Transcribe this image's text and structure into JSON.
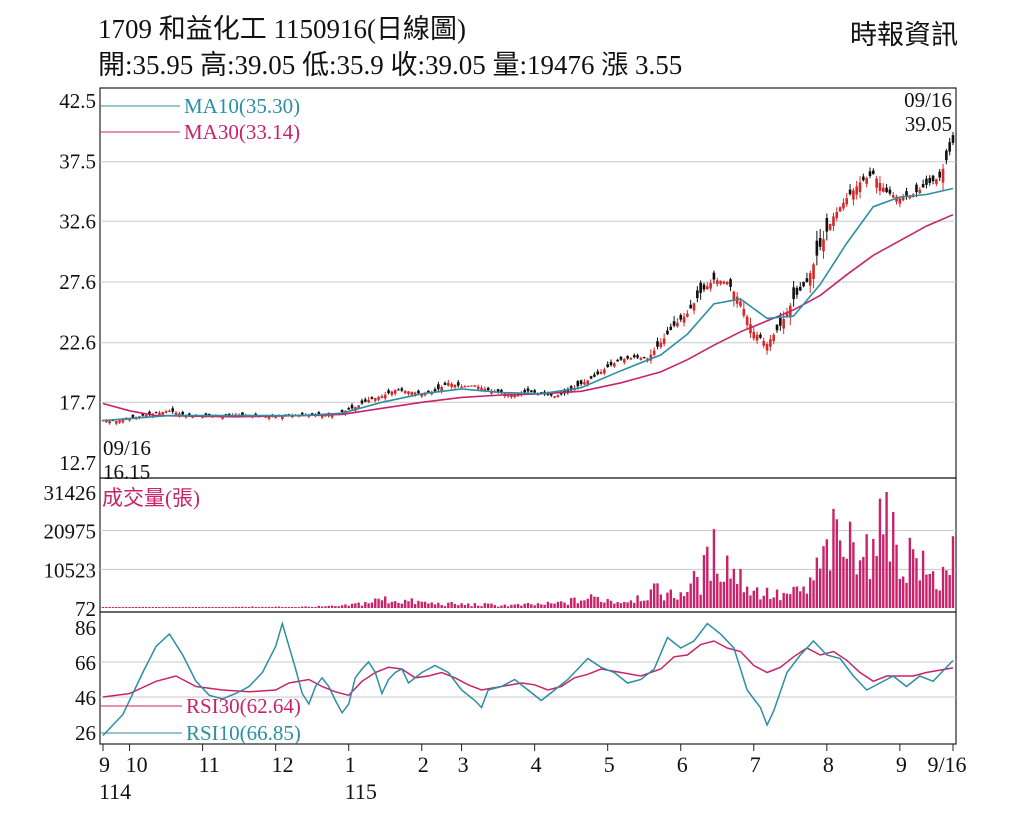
{
  "header": {
    "title": "1709  和益化工 1150916(日線圖)",
    "stats": "開:35.95 高:39.05 低:35.9 收:39.05 量:19476 漲 3.55",
    "source": "時報資訊"
  },
  "colors": {
    "ma10": "#2a8fa2",
    "ma30": "#c8236a",
    "candle_up": "#d42a2a",
    "candle_down": "#111111",
    "volume": "#c8236a",
    "rsi30": "#c8236a",
    "rsi10": "#2a8fa2"
  },
  "chart_data": [
    {
      "type": "candlestick",
      "panel": "price",
      "y_ticks": [
        "42.5",
        "37.5",
        "32.6",
        "27.6",
        "22.6",
        "17.7",
        "12.7"
      ],
      "ylim": [
        12.7,
        42.5
      ],
      "grid": true,
      "legend": [
        {
          "key": "ma10",
          "text": "MA10(35.30)"
        },
        {
          "key": "ma30",
          "text": "MA30(33.14)"
        }
      ],
      "annotations": {
        "high": {
          "date": "09/16",
          "value": "39.05"
        },
        "low": {
          "date": "09/16",
          "value": "16.15"
        }
      },
      "close_path": [
        [
          0,
          16.2
        ],
        [
          4,
          16.15
        ],
        [
          8,
          16.4
        ],
        [
          12,
          16.6
        ],
        [
          16,
          16.8
        ],
        [
          20,
          17.0
        ],
        [
          24,
          16.7
        ],
        [
          28,
          16.5
        ],
        [
          32,
          16.6
        ],
        [
          36,
          16.5
        ],
        [
          40,
          16.7
        ],
        [
          44,
          16.6
        ],
        [
          48,
          16.6
        ],
        [
          52,
          16.5
        ],
        [
          56,
          16.6
        ],
        [
          60,
          16.7
        ],
        [
          64,
          16.7
        ],
        [
          68,
          16.6
        ],
        [
          72,
          16.9
        ],
        [
          76,
          17.3
        ],
        [
          80,
          17.9
        ],
        [
          84,
          18.2
        ],
        [
          88,
          18.7
        ],
        [
          92,
          18.6
        ],
        [
          96,
          18.4
        ],
        [
          100,
          18.6
        ],
        [
          104,
          19.3
        ],
        [
          108,
          19.0
        ],
        [
          112,
          19.1
        ],
        [
          116,
          18.7
        ],
        [
          120,
          18.5
        ],
        [
          124,
          18.3
        ],
        [
          128,
          18.6
        ],
        [
          132,
          18.4
        ],
        [
          136,
          18.2
        ],
        [
          140,
          18.5
        ],
        [
          144,
          19.2
        ],
        [
          148,
          19.8
        ],
        [
          152,
          20.6
        ],
        [
          156,
          21.2
        ],
        [
          160,
          21.4
        ],
        [
          164,
          21.3
        ],
        [
          168,
          22.6
        ],
        [
          172,
          24.0
        ],
        [
          176,
          25.0
        ],
        [
          180,
          26.7
        ],
        [
          184,
          27.8
        ],
        [
          188,
          27.6
        ],
        [
          192,
          26.0
        ],
        [
          196,
          23.5
        ],
        [
          200,
          22.5
        ],
        [
          204,
          24.0
        ],
        [
          208,
          26.2
        ],
        [
          212,
          27.6
        ],
        [
          216,
          30.5
        ],
        [
          220,
          33.0
        ],
        [
          224,
          34.5
        ],
        [
          228,
          35.8
        ],
        [
          232,
          36.5
        ],
        [
          236,
          35.0
        ],
        [
          240,
          34.5
        ],
        [
          244,
          34.8
        ],
        [
          248,
          35.6
        ],
        [
          252,
          36.2
        ],
        [
          256,
          39.05
        ]
      ],
      "ma10": [
        [
          0,
          16.2
        ],
        [
          20,
          16.6
        ],
        [
          40,
          16.6
        ],
        [
          60,
          16.6
        ],
        [
          72,
          16.8
        ],
        [
          84,
          17.7
        ],
        [
          96,
          18.4
        ],
        [
          108,
          18.8
        ],
        [
          120,
          18.5
        ],
        [
          132,
          18.4
        ],
        [
          144,
          18.9
        ],
        [
          156,
          20.3
        ],
        [
          168,
          21.6
        ],
        [
          176,
          23.3
        ],
        [
          184,
          25.8
        ],
        [
          192,
          26.2
        ],
        [
          200,
          24.6
        ],
        [
          208,
          24.8
        ],
        [
          216,
          27.4
        ],
        [
          224,
          30.8
        ],
        [
          232,
          33.8
        ],
        [
          240,
          34.6
        ],
        [
          248,
          34.8
        ],
        [
          256,
          35.3
        ]
      ],
      "ma30": [
        [
          0,
          17.6
        ],
        [
          8,
          17.0
        ],
        [
          16,
          16.6
        ],
        [
          40,
          16.5
        ],
        [
          60,
          16.6
        ],
        [
          72,
          16.7
        ],
        [
          84,
          17.2
        ],
        [
          96,
          17.7
        ],
        [
          108,
          18.1
        ],
        [
          120,
          18.3
        ],
        [
          132,
          18.4
        ],
        [
          144,
          18.6
        ],
        [
          156,
          19.3
        ],
        [
          168,
          20.2
        ],
        [
          176,
          21.2
        ],
        [
          184,
          22.4
        ],
        [
          192,
          23.5
        ],
        [
          200,
          24.4
        ],
        [
          208,
          25.3
        ],
        [
          216,
          26.5
        ],
        [
          224,
          28.2
        ],
        [
          232,
          29.8
        ],
        [
          240,
          31.0
        ],
        [
          248,
          32.2
        ],
        [
          256,
          33.14
        ]
      ]
    },
    {
      "type": "bar",
      "panel": "volume",
      "title": "成交量(張)",
      "y_ticks": [
        "31426",
        "20975",
        "10523",
        "72"
      ],
      "ylim": [
        72,
        31426
      ],
      "grid": true,
      "peaks": [
        [
          0,
          100
        ],
        [
          16,
          200
        ],
        [
          32,
          300
        ],
        [
          48,
          400
        ],
        [
          64,
          500
        ],
        [
          72,
          700
        ],
        [
          80,
          2000
        ],
        [
          84,
          3000
        ],
        [
          90,
          2500
        ],
        [
          100,
          1500
        ],
        [
          112,
          1200
        ],
        [
          124,
          1000
        ],
        [
          136,
          1500
        ],
        [
          148,
          3500
        ],
        [
          156,
          2200
        ],
        [
          168,
          6000
        ],
        [
          172,
          3800
        ],
        [
          180,
          10000
        ],
        [
          184,
          18000
        ],
        [
          188,
          15000
        ],
        [
          192,
          10000
        ],
        [
          196,
          6000
        ],
        [
          204,
          4000
        ],
        [
          212,
          6000
        ],
        [
          216,
          14000
        ],
        [
          220,
          22000
        ],
        [
          224,
          19000
        ],
        [
          228,
          26000
        ],
        [
          232,
          16000
        ],
        [
          236,
          31426
        ],
        [
          240,
          14000
        ],
        [
          244,
          19000
        ],
        [
          248,
          11000
        ],
        [
          252,
          9000
        ],
        [
          256,
          19476
        ]
      ]
    },
    {
      "type": "line",
      "panel": "rsi",
      "y_ticks": [
        "86",
        "66",
        "46",
        "26"
      ],
      "ylim": [
        26,
        86
      ],
      "grid": true,
      "series": [
        {
          "key": "rsi30",
          "name": "RSI30(62.64)",
          "values": [
            [
              0,
              46
            ],
            [
              8,
              48
            ],
            [
              16,
              55
            ],
            [
              22,
              58
            ],
            [
              28,
              52
            ],
            [
              36,
              50
            ],
            [
              44,
              49
            ],
            [
              52,
              50
            ],
            [
              56,
              54
            ],
            [
              62,
              56
            ],
            [
              66,
              52
            ],
            [
              70,
              49
            ],
            [
              74,
              47
            ],
            [
              78,
              55
            ],
            [
              82,
              60
            ],
            [
              86,
              63
            ],
            [
              90,
              62
            ],
            [
              94,
              57
            ],
            [
              98,
              58
            ],
            [
              102,
              60
            ],
            [
              106,
              57
            ],
            [
              110,
              53
            ],
            [
              114,
              50
            ],
            [
              120,
              52
            ],
            [
              126,
              54
            ],
            [
              130,
              53
            ],
            [
              134,
              50
            ],
            [
              138,
              52
            ],
            [
              142,
              57
            ],
            [
              146,
              59
            ],
            [
              150,
              62
            ],
            [
              156,
              60
            ],
            [
              162,
              58
            ],
            [
              168,
              62
            ],
            [
              172,
              69
            ],
            [
              176,
              70
            ],
            [
              180,
              76
            ],
            [
              184,
              78
            ],
            [
              188,
              74
            ],
            [
              192,
              72
            ],
            [
              196,
              64
            ],
            [
              200,
              60
            ],
            [
              204,
              63
            ],
            [
              208,
              69
            ],
            [
              212,
              74
            ],
            [
              216,
              70
            ],
            [
              220,
              72
            ],
            [
              224,
              67
            ],
            [
              228,
              60
            ],
            [
              232,
              55
            ],
            [
              236,
              58
            ],
            [
              240,
              58
            ],
            [
              244,
              58
            ],
            [
              248,
              60
            ],
            [
              256,
              62.64
            ]
          ]
        },
        {
          "key": "rsi10",
          "name": "RSI10(66.85)",
          "values": [
            [
              0,
              24
            ],
            [
              6,
              36
            ],
            [
              12,
              60
            ],
            [
              16,
              75
            ],
            [
              20,
              82
            ],
            [
              24,
              70
            ],
            [
              28,
              55
            ],
            [
              32,
              47
            ],
            [
              36,
              45
            ],
            [
              40,
              48
            ],
            [
              44,
              52
            ],
            [
              48,
              60
            ],
            [
              52,
              75
            ],
            [
              54,
              88
            ],
            [
              58,
              62
            ],
            [
              60,
              48
            ],
            [
              62,
              42
            ],
            [
              64,
              52
            ],
            [
              66,
              57
            ],
            [
              68,
              52
            ],
            [
              70,
              44
            ],
            [
              72,
              37
            ],
            [
              74,
              42
            ],
            [
              76,
              57
            ],
            [
              78,
              62
            ],
            [
              80,
              66
            ],
            [
              82,
              60
            ],
            [
              84,
              48
            ],
            [
              86,
              56
            ],
            [
              88,
              60
            ],
            [
              90,
              62
            ],
            [
              92,
              54
            ],
            [
              96,
              60
            ],
            [
              100,
              64
            ],
            [
              104,
              60
            ],
            [
              108,
              50
            ],
            [
              112,
              44
            ],
            [
              114,
              40
            ],
            [
              116,
              50
            ],
            [
              120,
              52
            ],
            [
              124,
              56
            ],
            [
              128,
              50
            ],
            [
              132,
              44
            ],
            [
              136,
              50
            ],
            [
              140,
              56
            ],
            [
              144,
              64
            ],
            [
              146,
              68
            ],
            [
              150,
              63
            ],
            [
              154,
              60
            ],
            [
              158,
              54
            ],
            [
              162,
              56
            ],
            [
              166,
              62
            ],
            [
              170,
              80
            ],
            [
              174,
              74
            ],
            [
              178,
              78
            ],
            [
              182,
              88
            ],
            [
              186,
              82
            ],
            [
              190,
              74
            ],
            [
              194,
              50
            ],
            [
              198,
              40
            ],
            [
              200,
              30
            ],
            [
              202,
              38
            ],
            [
              206,
              60
            ],
            [
              210,
              70
            ],
            [
              214,
              78
            ],
            [
              218,
              70
            ],
            [
              222,
              68
            ],
            [
              226,
              58
            ],
            [
              230,
              50
            ],
            [
              234,
              54
            ],
            [
              238,
              58
            ],
            [
              242,
              52
            ],
            [
              246,
              58
            ],
            [
              250,
              55
            ],
            [
              256,
              66.85
            ]
          ]
        }
      ]
    }
  ],
  "x_axis": {
    "ticks": [
      {
        "label": "9",
        "index": 0
      },
      {
        "label": "10",
        "index": 8
      },
      {
        "label": "11",
        "index": 30
      },
      {
        "label": "12",
        "index": 52
      },
      {
        "label": "1",
        "index": 74
      },
      {
        "label": "2",
        "index": 96
      },
      {
        "label": "3",
        "index": 108
      },
      {
        "label": "4",
        "index": 130
      },
      {
        "label": "5",
        "index": 152
      },
      {
        "label": "6",
        "index": 174
      },
      {
        "label": "7",
        "index": 196
      },
      {
        "label": "8",
        "index": 218
      },
      {
        "label": "9",
        "index": 240
      },
      {
        "label": "9/16",
        "index": 256
      }
    ],
    "year_labels": [
      {
        "label": "114",
        "index": 0
      },
      {
        "label": "115",
        "index": 74
      }
    ],
    "max_index": 256
  }
}
